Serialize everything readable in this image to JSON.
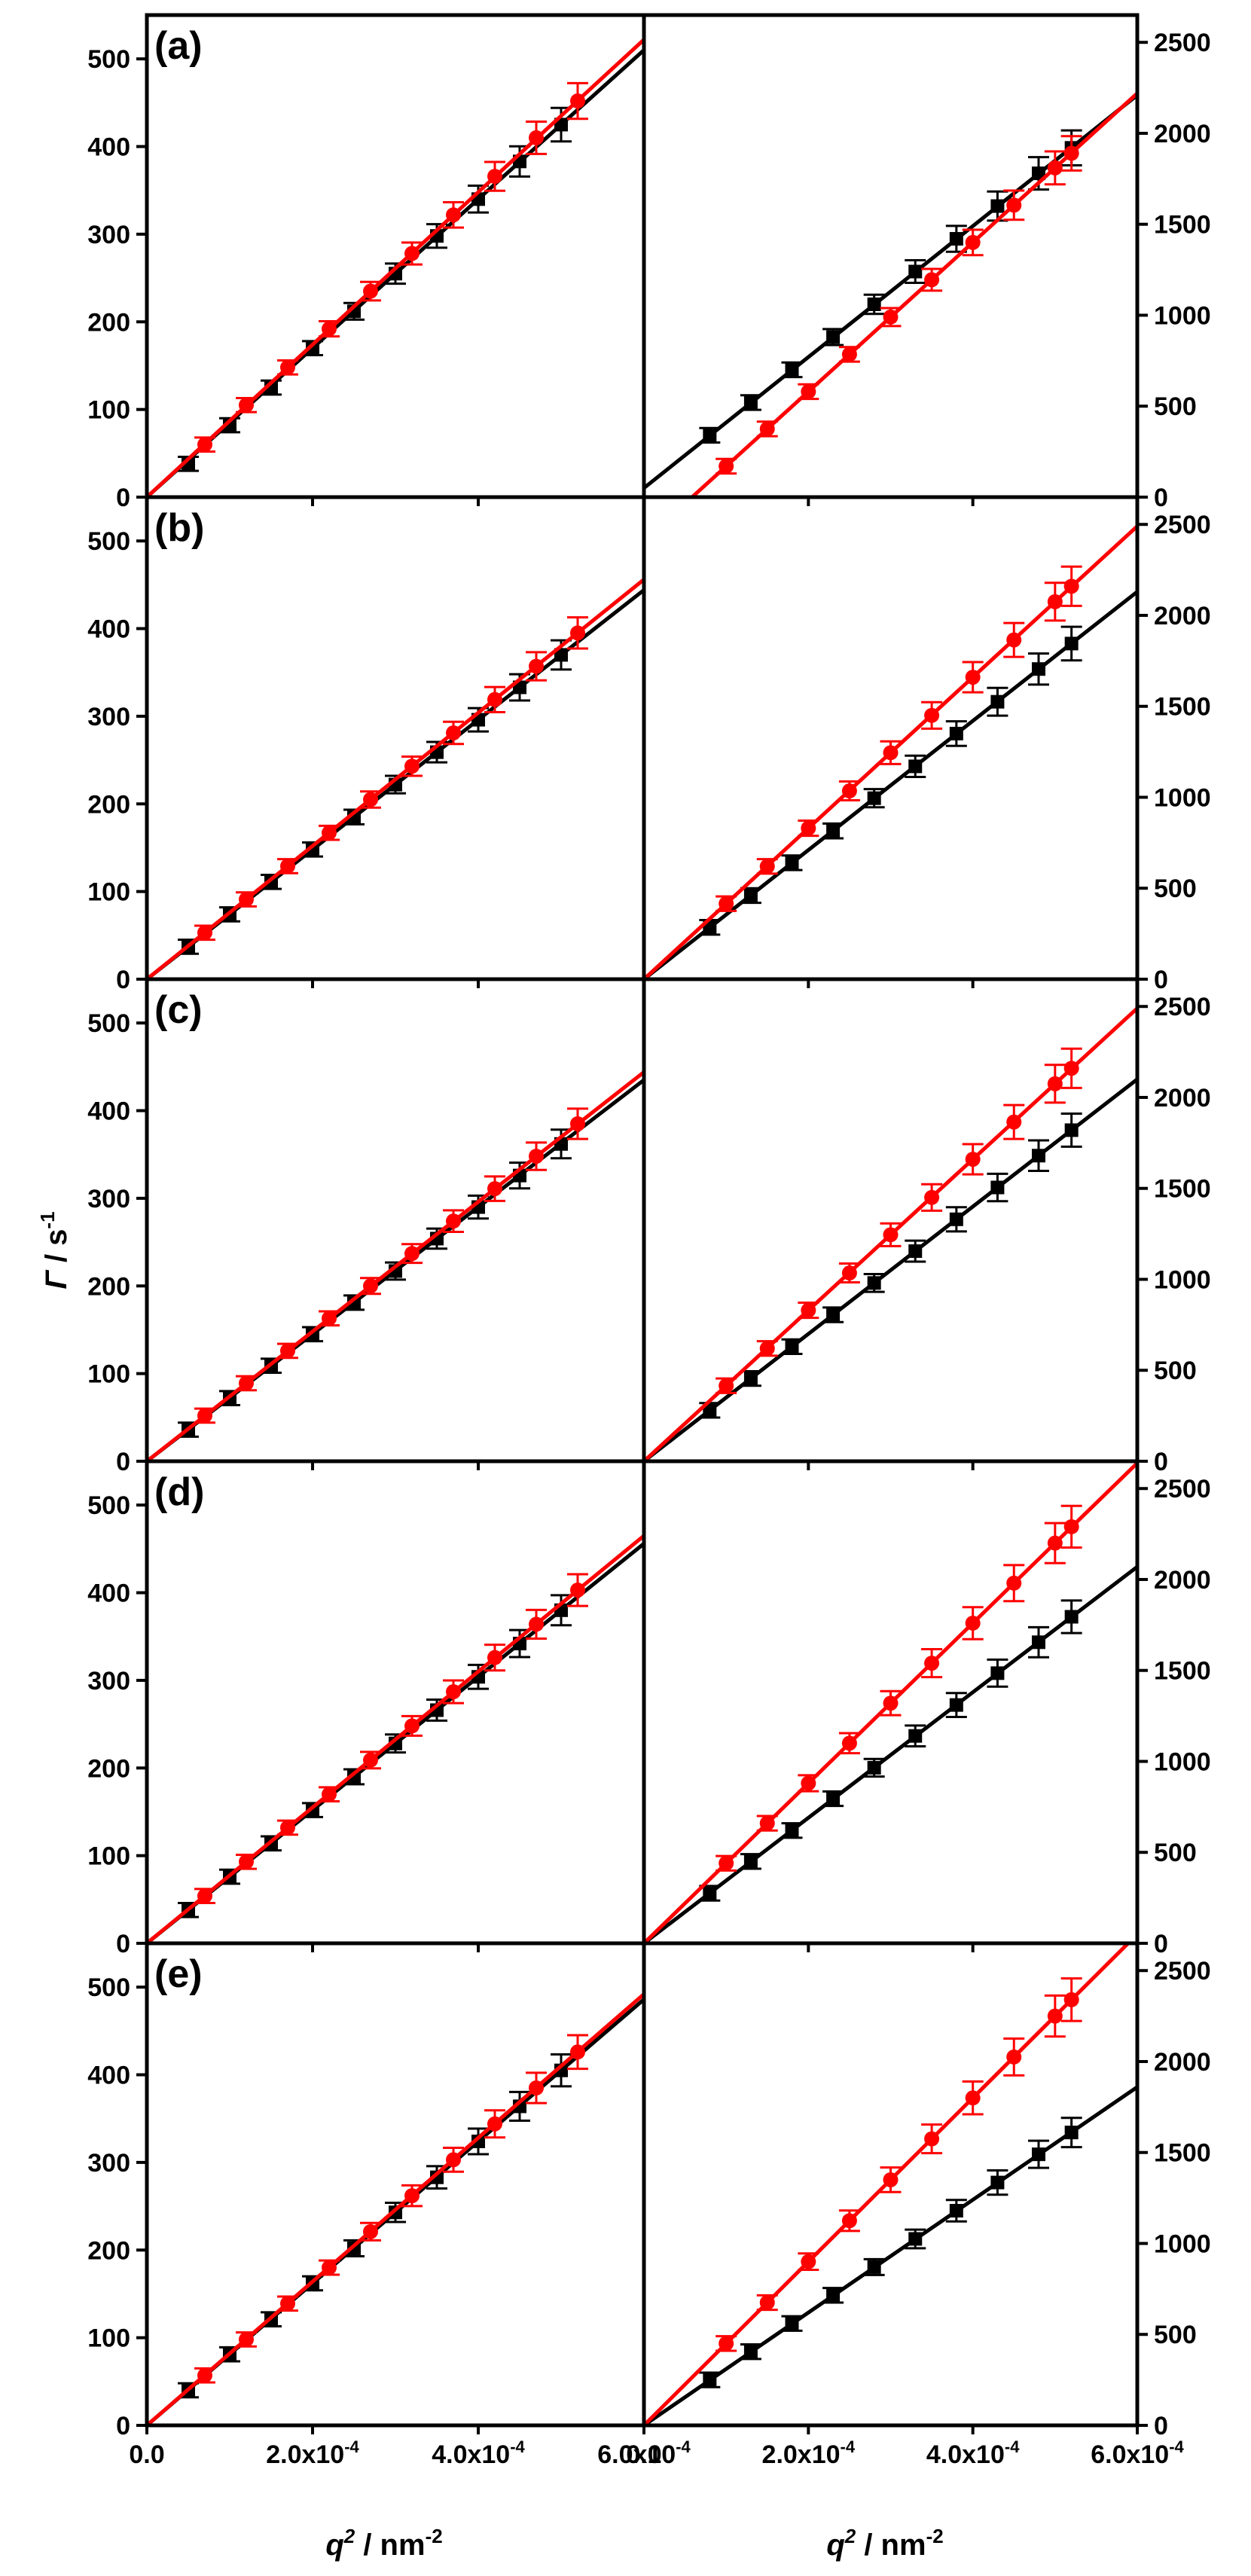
{
  "figure": {
    "ylabel_left": {
      "symbol": "Γ",
      "unit": " / s",
      "exp": "-1"
    },
    "xlabel_left": {
      "symbol": "q",
      "exp2": "2",
      "unit": " / nm",
      "exp": "-2"
    },
    "xlabel_right": {
      "symbol": "q",
      "exp2": "2",
      "unit": " / nm",
      "exp": "-2"
    },
    "colors": {
      "black": "#000000",
      "red": "#ff0000",
      "axis": "#000000"
    }
  },
  "chart_data": [
    {
      "type": "scatter",
      "panel": "(a)",
      "side": "left",
      "xlim": [
        0,
        0.0006
      ],
      "ylim": [
        0,
        550
      ],
      "xticks": [
        0,
        0.0002,
        0.0004,
        0.0006
      ],
      "xtick_labels": [
        "0.0",
        "2.0x10",
        "4.0x10",
        "6.0x10"
      ],
      "xtick_exps": [
        "",
        "-4",
        "-4",
        "-4"
      ],
      "yticks": [
        0,
        100,
        200,
        300,
        400,
        500
      ],
      "ytick_labels": [
        "0",
        "100",
        "200",
        "300",
        "400",
        "500"
      ],
      "series": [
        {
          "color": "#000000",
          "marker": "square",
          "slope": 850000,
          "intercept": 0,
          "x": [
            5e-05,
            0.0001,
            0.00015,
            0.0002,
            0.00025,
            0.0003,
            0.00035,
            0.0004,
            0.00045,
            0.0005
          ],
          "y": [
            38,
            82,
            125,
            170,
            212,
            255,
            298,
            340,
            383,
            425
          ]
        },
        {
          "color": "#ff0000",
          "marker": "circle",
          "slope": 870000,
          "intercept": 0,
          "x": [
            7e-05,
            0.00012,
            0.00017,
            0.00022,
            0.00027,
            0.00032,
            0.00037,
            0.00042,
            0.00047,
            0.00052
          ],
          "y": [
            60,
            105,
            148,
            192,
            235,
            278,
            322,
            366,
            410,
            452
          ]
        }
      ]
    },
    {
      "type": "scatter",
      "panel": "(a)",
      "side": "right",
      "xlim": [
        0,
        0.0006
      ],
      "ylim": [
        0,
        2650
      ],
      "xticks": [
        0,
        0.0002,
        0.0004,
        0.0006
      ],
      "xtick_labels": [
        "0.0",
        "2.0x10",
        "4.0x10",
        "6.0x10"
      ],
      "xtick_exps": [
        "",
        "-4",
        "-4",
        "-4"
      ],
      "yticks": [
        0,
        500,
        1000,
        1500,
        2000,
        2500
      ],
      "ytick_labels": [
        "0",
        "500",
        "1000",
        "1500",
        "2000",
        "2500"
      ],
      "series": [
        {
          "color": "#000000",
          "marker": "square",
          "slope": 3600000,
          "intercept": 50,
          "x": [
            8e-05,
            0.00013,
            0.00018,
            0.00023,
            0.00028,
            0.00033,
            0.00038,
            0.00043,
            0.00048,
            0.00052
          ],
          "y": [
            340,
            520,
            700,
            880,
            1060,
            1240,
            1420,
            1600,
            1780,
            1920
          ]
        },
        {
          "color": "#ff0000",
          "marker": "circle",
          "slope": 4100000,
          "intercept": -240,
          "x": [
            0.0001,
            0.00015,
            0.0002,
            0.00025,
            0.0003,
            0.00035,
            0.0004,
            0.00045,
            0.0005,
            0.00052
          ],
          "y": [
            170,
            375,
            580,
            785,
            990,
            1195,
            1400,
            1605,
            1810,
            1890
          ]
        }
      ]
    },
    {
      "type": "scatter",
      "panel": "(b)",
      "side": "left",
      "xlim": [
        0,
        0.0006
      ],
      "ylim": [
        0,
        550
      ],
      "xticks": [
        0,
        0.0002,
        0.0004,
        0.0006
      ],
      "xtick_labels": [
        "0.0",
        "2.0x10",
        "4.0x10",
        "6.0x10"
      ],
      "xtick_exps": [
        "",
        "-4",
        "-4",
        "-4"
      ],
      "yticks": [
        0,
        100,
        200,
        300,
        400,
        500
      ],
      "ytick_labels": [
        "0",
        "100",
        "200",
        "300",
        "400",
        "500"
      ],
      "series": [
        {
          "color": "#000000",
          "marker": "square",
          "slope": 740000,
          "intercept": 0,
          "x": [
            5e-05,
            0.0001,
            0.00015,
            0.0002,
            0.00025,
            0.0003,
            0.00035,
            0.0004,
            0.00045,
            0.0005
          ],
          "y": [
            37,
            74,
            111,
            148,
            185,
            222,
            259,
            296,
            333,
            370
          ]
        },
        {
          "color": "#ff0000",
          "marker": "circle",
          "slope": 760000,
          "intercept": 0,
          "x": [
            7e-05,
            0.00012,
            0.00017,
            0.00022,
            0.00027,
            0.00032,
            0.00037,
            0.00042,
            0.00047,
            0.00052
          ],
          "y": [
            53,
            91,
            129,
            167,
            205,
            243,
            281,
            319,
            357,
            395
          ]
        }
      ]
    },
    {
      "type": "scatter",
      "panel": "(b)",
      "side": "right",
      "xlim": [
        0,
        0.0006
      ],
      "ylim": [
        0,
        2650
      ],
      "xticks": [
        0,
        0.0002,
        0.0004,
        0.0006
      ],
      "xtick_labels": [
        "0.0",
        "2.0x10",
        "4.0x10",
        "6.0x10"
      ],
      "xtick_exps": [
        "",
        "-4",
        "-4",
        "-4"
      ],
      "yticks": [
        0,
        500,
        1000,
        1500,
        2000,
        2500
      ],
      "ytick_labels": [
        "0",
        "500",
        "1000",
        "1500",
        "2000",
        "2500"
      ],
      "series": [
        {
          "color": "#000000",
          "marker": "square",
          "slope": 3550000,
          "intercept": 0,
          "x": [
            8e-05,
            0.00013,
            0.00018,
            0.00023,
            0.00028,
            0.00033,
            0.00038,
            0.00043,
            0.00048,
            0.00052
          ],
          "y": [
            285,
            460,
            640,
            815,
            995,
            1170,
            1350,
            1525,
            1705,
            1845
          ]
        },
        {
          "color": "#ff0000",
          "marker": "circle",
          "slope": 4150000,
          "intercept": 0,
          "x": [
            0.0001,
            0.00015,
            0.0002,
            0.00025,
            0.0003,
            0.00035,
            0.0004,
            0.00045,
            0.0005,
            0.00052
          ],
          "y": [
            415,
            620,
            830,
            1035,
            1245,
            1450,
            1660,
            1865,
            2075,
            2160
          ]
        }
      ]
    },
    {
      "type": "scatter",
      "panel": "(c)",
      "side": "left",
      "xlim": [
        0,
        0.0006
      ],
      "ylim": [
        0,
        550
      ],
      "xticks": [
        0,
        0.0002,
        0.0004,
        0.0006
      ],
      "xtick_labels": [
        "0.0",
        "2.0x10",
        "4.0x10",
        "6.0x10"
      ],
      "xtick_exps": [
        "",
        "-4",
        "-4",
        "-4"
      ],
      "yticks": [
        0,
        100,
        200,
        300,
        400,
        500
      ],
      "ytick_labels": [
        "0",
        "100",
        "200",
        "300",
        "400",
        "500"
      ],
      "series": [
        {
          "color": "#000000",
          "marker": "square",
          "slope": 725000,
          "intercept": 0,
          "x": [
            5e-05,
            0.0001,
            0.00015,
            0.0002,
            0.00025,
            0.0003,
            0.00035,
            0.0004,
            0.00045,
            0.0005
          ],
          "y": [
            36,
            72,
            109,
            145,
            181,
            217,
            254,
            290,
            326,
            362
          ]
        },
        {
          "color": "#ff0000",
          "marker": "circle",
          "slope": 740000,
          "intercept": 0,
          "x": [
            7e-05,
            0.00012,
            0.00017,
            0.00022,
            0.00027,
            0.00032,
            0.00037,
            0.00042,
            0.00047,
            0.00052
          ],
          "y": [
            52,
            89,
            126,
            163,
            200,
            237,
            274,
            311,
            348,
            385
          ]
        }
      ]
    },
    {
      "type": "scatter",
      "panel": "(c)",
      "side": "right",
      "xlim": [
        0,
        0.0006
      ],
      "ylim": [
        0,
        2650
      ],
      "xticks": [
        0,
        0.0002,
        0.0004,
        0.0006
      ],
      "xtick_labels": [
        "0.0",
        "2.0x10",
        "4.0x10",
        "6.0x10"
      ],
      "xtick_exps": [
        "",
        "-4",
        "-4",
        "-4"
      ],
      "yticks": [
        0,
        500,
        1000,
        1500,
        2000,
        2500
      ],
      "ytick_labels": [
        "0",
        "500",
        "1000",
        "1500",
        "2000",
        "2500"
      ],
      "series": [
        {
          "color": "#000000",
          "marker": "square",
          "slope": 3500000,
          "intercept": 0,
          "x": [
            8e-05,
            0.00013,
            0.00018,
            0.00023,
            0.00028,
            0.00033,
            0.00038,
            0.00043,
            0.00048,
            0.00052
          ],
          "y": [
            280,
            455,
            630,
            805,
            980,
            1155,
            1330,
            1505,
            1680,
            1820
          ]
        },
        {
          "color": "#ff0000",
          "marker": "circle",
          "slope": 4150000,
          "intercept": 0,
          "x": [
            0.0001,
            0.00015,
            0.0002,
            0.00025,
            0.0003,
            0.00035,
            0.0004,
            0.00045,
            0.0005,
            0.00052
          ],
          "y": [
            415,
            620,
            830,
            1035,
            1245,
            1450,
            1660,
            1865,
            2075,
            2160
          ]
        }
      ]
    },
    {
      "type": "scatter",
      "panel": "(d)",
      "side": "left",
      "xlim": [
        0,
        0.0006
      ],
      "ylim": [
        0,
        550
      ],
      "xticks": [
        0,
        0.0002,
        0.0004,
        0.0006
      ],
      "xtick_labels": [
        "0.0",
        "2.0x10",
        "4.0x10",
        "6.0x10"
      ],
      "xtick_exps": [
        "",
        "-4",
        "-4",
        "-4"
      ],
      "yticks": [
        0,
        100,
        200,
        300,
        400,
        500
      ],
      "ytick_labels": [
        "0",
        "100",
        "200",
        "300",
        "400",
        "500"
      ],
      "series": [
        {
          "color": "#000000",
          "marker": "square",
          "slope": 760000,
          "intercept": 0,
          "x": [
            5e-05,
            0.0001,
            0.00015,
            0.0002,
            0.00025,
            0.0003,
            0.00035,
            0.0004,
            0.00045,
            0.0005
          ],
          "y": [
            38,
            76,
            114,
            152,
            190,
            228,
            266,
            304,
            342,
            380
          ]
        },
        {
          "color": "#ff0000",
          "marker": "circle",
          "slope": 775000,
          "intercept": 0,
          "x": [
            7e-05,
            0.00012,
            0.00017,
            0.00022,
            0.00027,
            0.00032,
            0.00037,
            0.00042,
            0.00047,
            0.00052
          ],
          "y": [
            54,
            93,
            132,
            170,
            209,
            248,
            287,
            326,
            364,
            403
          ]
        }
      ]
    },
    {
      "type": "scatter",
      "panel": "(d)",
      "side": "right",
      "xlim": [
        0,
        0.0006
      ],
      "ylim": [
        0,
        2650
      ],
      "xticks": [
        0,
        0.0002,
        0.0004,
        0.0006
      ],
      "xtick_labels": [
        "0.0",
        "2.0x10",
        "4.0x10",
        "6.0x10"
      ],
      "xtick_exps": [
        "",
        "-4",
        "-4",
        "-4"
      ],
      "yticks": [
        0,
        500,
        1000,
        1500,
        2000,
        2500
      ],
      "ytick_labels": [
        "0",
        "500",
        "1000",
        "1500",
        "2000",
        "2500"
      ],
      "series": [
        {
          "color": "#000000",
          "marker": "square",
          "slope": 3450000,
          "intercept": 0,
          "x": [
            8e-05,
            0.00013,
            0.00018,
            0.00023,
            0.00028,
            0.00033,
            0.00038,
            0.00043,
            0.00048,
            0.00052
          ],
          "y": [
            275,
            450,
            620,
            795,
            965,
            1140,
            1310,
            1485,
            1655,
            1795
          ]
        },
        {
          "color": "#ff0000",
          "marker": "circle",
          "slope": 4400000,
          "intercept": 0,
          "x": [
            0.0001,
            0.00015,
            0.0002,
            0.00025,
            0.0003,
            0.00035,
            0.0004,
            0.00045,
            0.0005,
            0.00052
          ],
          "y": [
            440,
            660,
            880,
            1100,
            1320,
            1540,
            1760,
            1980,
            2200,
            2290
          ]
        }
      ]
    },
    {
      "type": "scatter",
      "panel": "(e)",
      "side": "left",
      "xlim": [
        0,
        0.0006
      ],
      "ylim": [
        0,
        550
      ],
      "xticks": [
        0,
        0.0002,
        0.0004,
        0.0006
      ],
      "xtick_labels": [
        "0.0",
        "2.0x10",
        "4.0x10",
        "6.0x10"
      ],
      "xtick_exps": [
        "",
        "-4",
        "-4",
        "-4"
      ],
      "yticks": [
        0,
        100,
        200,
        300,
        400,
        500
      ],
      "ytick_labels": [
        "0",
        "100",
        "200",
        "300",
        "400",
        "500"
      ],
      "series": [
        {
          "color": "#000000",
          "marker": "square",
          "slope": 810000,
          "intercept": 0,
          "x": [
            5e-05,
            0.0001,
            0.00015,
            0.0002,
            0.00025,
            0.0003,
            0.00035,
            0.0004,
            0.00045,
            0.0005
          ],
          "y": [
            40,
            81,
            121,
            162,
            202,
            243,
            283,
            324,
            364,
            405
          ]
        },
        {
          "color": "#ff0000",
          "marker": "circle",
          "slope": 820000,
          "intercept": 0,
          "x": [
            7e-05,
            0.00012,
            0.00017,
            0.00022,
            0.00027,
            0.00032,
            0.00037,
            0.00042,
            0.00047,
            0.00052
          ],
          "y": [
            57,
            98,
            139,
            180,
            221,
            262,
            303,
            344,
            385,
            426
          ]
        }
      ]
    },
    {
      "type": "scatter",
      "panel": "(e)",
      "side": "right",
      "xlim": [
        0,
        0.0006
      ],
      "ylim": [
        0,
        2650
      ],
      "xticks": [
        0,
        0.0002,
        0.0004,
        0.0006
      ],
      "xtick_labels": [
        "0.0",
        "2.0x10",
        "4.0x10",
        "6.0x10"
      ],
      "xtick_exps": [
        "",
        "-4",
        "-4",
        "-4"
      ],
      "yticks": [
        0,
        500,
        1000,
        1500,
        2000,
        2500
      ],
      "ytick_labels": [
        "0",
        "500",
        "1000",
        "1500",
        "2000",
        "2500"
      ],
      "series": [
        {
          "color": "#000000",
          "marker": "square",
          "slope": 3100000,
          "intercept": 0,
          "x": [
            8e-05,
            0.00013,
            0.00018,
            0.00023,
            0.00028,
            0.00033,
            0.00038,
            0.00043,
            0.00048,
            0.00052
          ],
          "y": [
            250,
            405,
            560,
            715,
            870,
            1025,
            1180,
            1335,
            1490,
            1610
          ]
        },
        {
          "color": "#ff0000",
          "marker": "circle",
          "slope": 4500000,
          "intercept": 0,
          "x": [
            0.0001,
            0.00015,
            0.0002,
            0.00025,
            0.0003,
            0.00035,
            0.0004,
            0.00045,
            0.0005,
            0.00052
          ],
          "y": [
            450,
            675,
            900,
            1125,
            1350,
            1575,
            1800,
            2025,
            2250,
            2340
          ]
        }
      ]
    }
  ]
}
